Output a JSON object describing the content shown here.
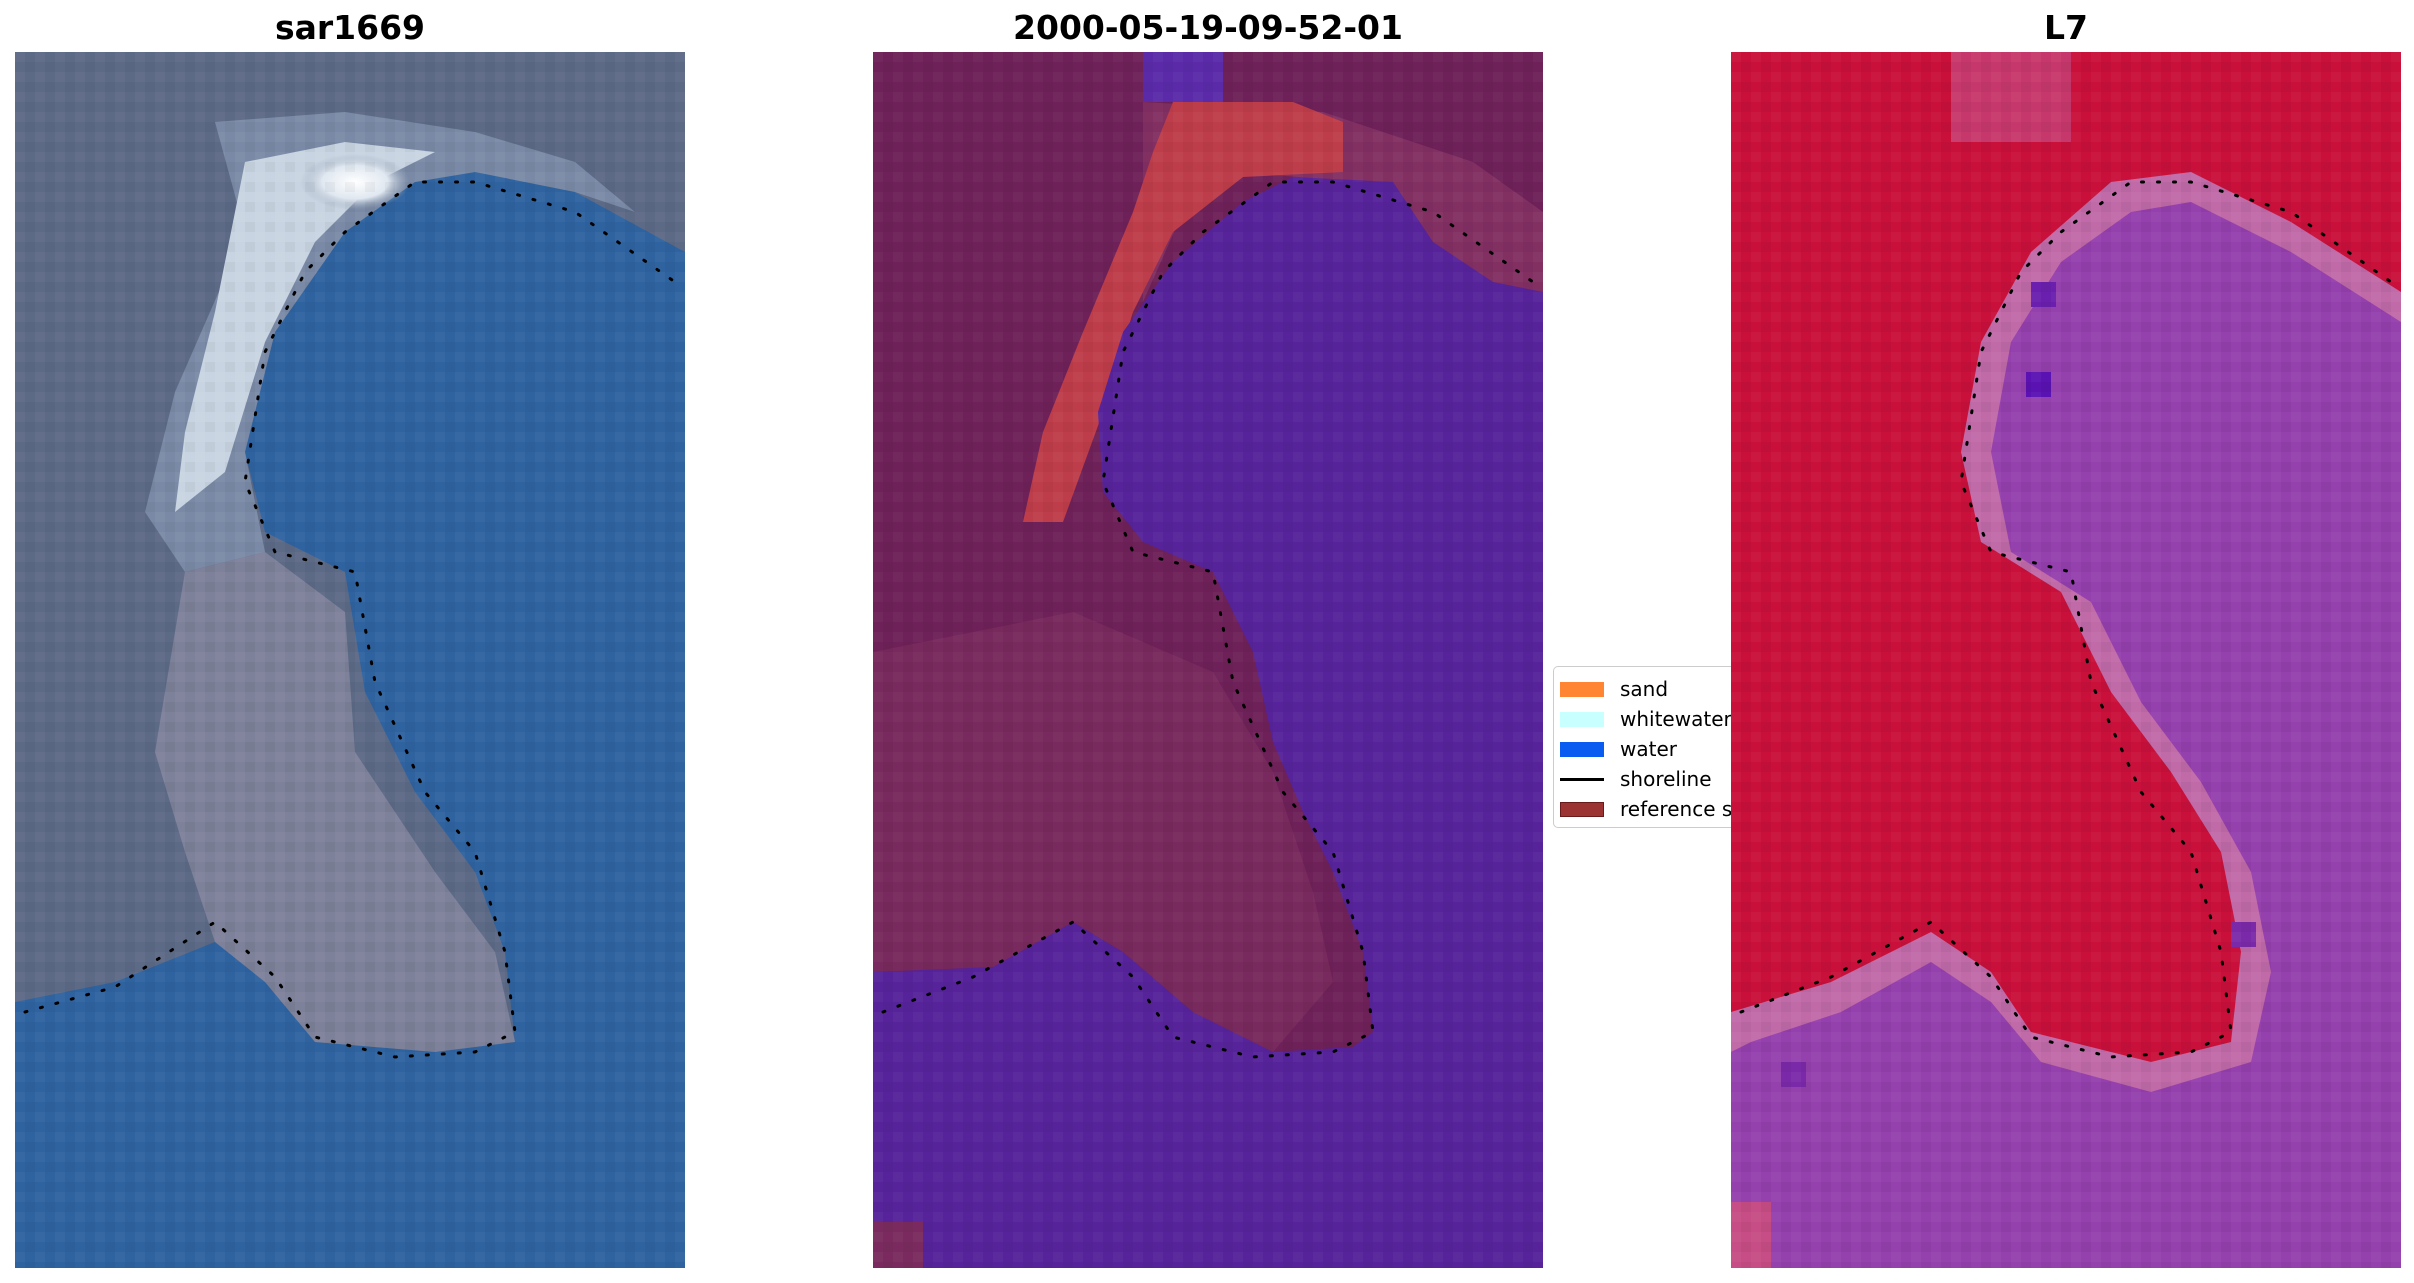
{
  "panels": [
    {
      "title": "sar1669",
      "image": "rgb-satellite-image"
    },
    {
      "title": "2000-05-19-09-52-01",
      "image": "classified-image-overlay"
    },
    {
      "title": "L7",
      "image": "mndwi-image"
    }
  ],
  "legend": {
    "items": [
      {
        "label": "sand",
        "color": "#ff8533",
        "kind": "patch"
      },
      {
        "label": "whitewater",
        "color": "#c8ffff",
        "kind": "patch"
      },
      {
        "label": "water",
        "color": "#0a5bf0",
        "kind": "patch"
      },
      {
        "label": "shoreline",
        "color": "#000000",
        "kind": "line"
      },
      {
        "label": "reference shoreline buffer",
        "color": "#9c3333",
        "kind": "patch"
      }
    ]
  },
  "colors": {
    "rgb_land": "#5d6a86",
    "rgb_water": "#2f63a0",
    "rgb_surf": "#e8eef4",
    "class_land": "#6e2158",
    "class_water": "#56239a",
    "class_buffer": "#be3d4a",
    "class_top_water": "#5a2aa8",
    "mndwi_land": "#c8103a",
    "mndwi_water": "#9440ad",
    "mndwi_edge": "#c06aa8",
    "shoreline_dots": "#000000"
  }
}
